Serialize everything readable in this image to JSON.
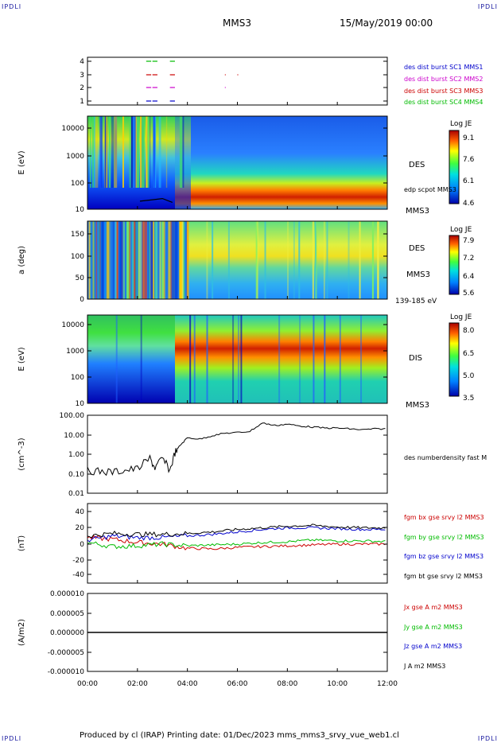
{
  "corner_tag": "IPDLI",
  "header": {
    "spacecraft": "MMS3",
    "datetime": "15/May/2019 00:00"
  },
  "footer": "Produced by cl (IRAP)   Printing date: 01/Dec/2023   mms_mms3_srvy_vue_web1.cl",
  "x_axis": {
    "ticks": [
      "00:00",
      "02:00",
      "04:00",
      "06:00",
      "08:00",
      "10:00",
      "12:00"
    ],
    "hours": [
      0,
      2,
      4,
      6,
      8,
      10,
      12
    ]
  },
  "panels": {
    "coverage": {
      "yticks": [
        "4",
        "3",
        "2",
        "1"
      ],
      "legend": [
        {
          "label": "des dist burst SC1 MMS1",
          "color": "#0000cc"
        },
        {
          "label": "des dist burst SC2 MMS2",
          "color": "#cc00cc"
        },
        {
          "label": "des dist burst SC3 MMS3",
          "color": "#cc0000"
        },
        {
          "label": "des dist burst SC4 MMS4",
          "color": "#00bb00"
        }
      ]
    },
    "des_energy": {
      "ylabel": "E (eV)",
      "yticks": [
        "10000",
        "1000",
        "100",
        "10"
      ],
      "label1": "DES",
      "label2": "edp scpot MMS3",
      "label3": "MMS3",
      "colorbar": {
        "title": "Log JE",
        "ticks": [
          "9.1",
          "7.6",
          "6.1",
          "4.6"
        ]
      }
    },
    "des_pitch": {
      "ylabel": "a (deg)",
      "yticks": [
        "150",
        "100",
        "50",
        "0"
      ],
      "label1": "DES",
      "label2": "MMS3",
      "label3": "139-185 eV",
      "colorbar": {
        "title": "Log JE",
        "ticks": [
          "7.9",
          "7.2",
          "6.4",
          "5.6"
        ]
      }
    },
    "dis_energy": {
      "ylabel": "E (eV)",
      "yticks": [
        "10000",
        "1000",
        "100",
        "10"
      ],
      "label1": "DIS",
      "label2": "MMS3",
      "colorbar": {
        "title": "Log JE",
        "ticks": [
          "8.0",
          "6.5",
          "5.0",
          "3.5"
        ]
      }
    },
    "density": {
      "ylabel": "(cm^-3)",
      "yticks": [
        "100.00",
        "10.00",
        "1.00",
        "0.10",
        "0.01"
      ],
      "legend": [
        {
          "label": "des numberdensity fast M",
          "color": "#000000"
        }
      ]
    },
    "bfield": {
      "ylabel": "(nT)",
      "yticks": [
        "40",
        "20",
        "0",
        "-20",
        "-40"
      ],
      "legend": [
        {
          "label": "fgm bx gse srvy l2 MMS3",
          "color": "#cc0000"
        },
        {
          "label": "fgm by gse srvy l2 MMS3",
          "color": "#00bb00"
        },
        {
          "label": "fgm bz gse srvy l2 MMS3",
          "color": "#0000cc"
        },
        {
          "label": "fgm bt gse srvy l2 MMS3",
          "color": "#000000"
        }
      ]
    },
    "current": {
      "ylabel": "(A/m2)",
      "yticks": [
        "0.000010",
        "0.000005",
        "0.000000",
        "-0.000005",
        "-0.000010"
      ],
      "legend": [
        {
          "label": "Jx gse A m2 MMS3",
          "color": "#cc0000"
        },
        {
          "label": "Jy gse A m2 MMS3",
          "color": "#00bb00"
        },
        {
          "label": "Jz gse A m2 MMS3",
          "color": "#0000cc"
        },
        {
          "label": "J A m2 MMS3",
          "color": "#000000"
        }
      ]
    }
  },
  "chart_data": [
    {
      "type": "line",
      "title": "",
      "ylabel": "",
      "ylim": [
        0.5,
        4.5
      ],
      "x_unit": "hours since 00:00",
      "series": [
        {
          "name": "des dist burst SC4 MMS4",
          "y": 4,
          "intervals": [
            [
              2.35,
              2.55
            ],
            [
              2.6,
              2.8
            ],
            [
              3.3,
              3.5
            ]
          ]
        },
        {
          "name": "des dist burst SC3 MMS3",
          "y": 3,
          "intervals": [
            [
              2.35,
              2.55
            ],
            [
              2.6,
              2.8
            ],
            [
              3.3,
              3.5
            ],
            [
              5.5,
              5.52
            ],
            [
              6.0,
              6.03
            ]
          ]
        },
        {
          "name": "des dist burst SC2 MMS2",
          "y": 2,
          "intervals": [
            [
              2.35,
              2.55
            ],
            [
              2.6,
              2.8
            ],
            [
              3.3,
              3.5
            ],
            [
              5.5,
              5.52
            ]
          ]
        },
        {
          "name": "des dist burst SC1 MMS1",
          "y": 1,
          "intervals": [
            [
              2.35,
              2.55
            ],
            [
              2.6,
              2.8
            ],
            [
              3.3,
              3.5
            ]
          ]
        }
      ]
    },
    {
      "type": "heatmap",
      "ylabel": "E (eV)",
      "yscale": "log",
      "ylim": [
        10,
        30000
      ],
      "xlim": [
        0,
        12
      ],
      "colorbar_range": [
        4.6,
        9.1
      ],
      "description_values": {
        "hours": [
          0,
          1,
          2,
          3,
          3.5,
          4,
          5,
          6,
          8,
          10,
          12
        ],
        "peak_energy_eV": [
          3000,
          3000,
          2000,
          1500,
          200,
          80,
          60,
          55,
          50,
          50,
          50
        ]
      },
      "scpot": {
        "x": [
          2.1,
          2.5,
          3.0,
          3.4
        ],
        "y": [
          20,
          22,
          25,
          18
        ]
      }
    },
    {
      "type": "heatmap",
      "ylabel": "a (deg)",
      "ylim": [
        0,
        180
      ],
      "xlim": [
        0,
        12
      ],
      "colorbar_range": [
        5.6,
        7.9
      ]
    },
    {
      "type": "heatmap",
      "ylabel": "E (eV)",
      "yscale": "log",
      "ylim": [
        10,
        30000
      ],
      "xlim": [
        0,
        12
      ],
      "colorbar_range": [
        3.5,
        8.0
      ],
      "description_values": {
        "hours": [
          0,
          2,
          3.5,
          4,
          6,
          8,
          10,
          12
        ],
        "peak_energy_eV": [
          8000,
          8000,
          3000,
          1000,
          900,
          800,
          800,
          800
        ]
      }
    },
    {
      "type": "line",
      "ylabel": "(cm^-3)",
      "yscale": "log",
      "ylim": [
        0.01,
        100
      ],
      "series": [
        {
          "name": "des numberdensity fast M",
          "x": [
            0,
            0.5,
            1,
            1.5,
            2,
            2.5,
            2.7,
            3,
            3.3,
            3.5,
            3.7,
            4,
            4.5,
            5,
            5.5,
            6,
            6.5,
            7,
            7.5,
            8,
            8.5,
            9,
            9.5,
            10,
            10.5,
            11,
            11.5,
            12
          ],
          "y": [
            0.15,
            0.13,
            0.12,
            0.15,
            0.18,
            0.6,
            0.2,
            0.6,
            0.15,
            1.2,
            2.8,
            7,
            6,
            9,
            12,
            13,
            15,
            40,
            30,
            35,
            28,
            25,
            22,
            22,
            20,
            18,
            20,
            20
          ]
        }
      ]
    },
    {
      "type": "line",
      "ylabel": "(nT)",
      "ylim": [
        -50,
        50
      ],
      "series": [
        {
          "name": "fgm bx gse srvy l2 MMS3",
          "x": [
            0,
            1,
            2,
            3,
            4,
            5,
            6,
            7,
            8,
            9,
            10,
            11,
            12
          ],
          "y": [
            8,
            6,
            2,
            0,
            -5,
            -6,
            -4,
            -3,
            -2,
            -1,
            0,
            0,
            0
          ]
        },
        {
          "name": "fgm by gse srvy l2 MMS3",
          "x": [
            0,
            1,
            2,
            3,
            4,
            5,
            6,
            7,
            8,
            9,
            10,
            11,
            12
          ],
          "y": [
            2,
            -3,
            -2,
            0,
            -2,
            -1,
            0,
            2,
            3,
            5,
            4,
            4,
            3
          ]
        },
        {
          "name": "fgm bz gse srvy l2 MMS3",
          "x": [
            0,
            1,
            2,
            3,
            4,
            5,
            6,
            7,
            8,
            9,
            10,
            11,
            12
          ],
          "y": [
            5,
            10,
            8,
            8,
            10,
            12,
            15,
            18,
            20,
            20,
            19,
            18,
            18
          ]
        },
        {
          "name": "fgm bt gse srvy l2 MMS3",
          "x": [
            0,
            1,
            2,
            3,
            4,
            5,
            6,
            7,
            8,
            9,
            10,
            11,
            12
          ],
          "y": [
            10,
            13,
            12,
            12,
            13,
            15,
            18,
            20,
            22,
            23,
            21,
            20,
            20
          ]
        }
      ]
    },
    {
      "type": "line",
      "ylabel": "(A/m2)",
      "ylim": [
        -1e-05,
        1e-05
      ],
      "series": [
        {
          "name": "Jx gse A m2 MMS3",
          "x": [
            0,
            12
          ],
          "y": [
            0,
            0
          ]
        },
        {
          "name": "Jy gse A m2 MMS3",
          "x": [
            0,
            12
          ],
          "y": [
            0,
            0
          ]
        },
        {
          "name": "Jz gse A m2 MMS3",
          "x": [
            0,
            12
          ],
          "y": [
            0,
            0
          ]
        },
        {
          "name": "J A m2 MMS3",
          "x": [
            0,
            12
          ],
          "y": [
            0,
            0
          ]
        }
      ]
    }
  ]
}
